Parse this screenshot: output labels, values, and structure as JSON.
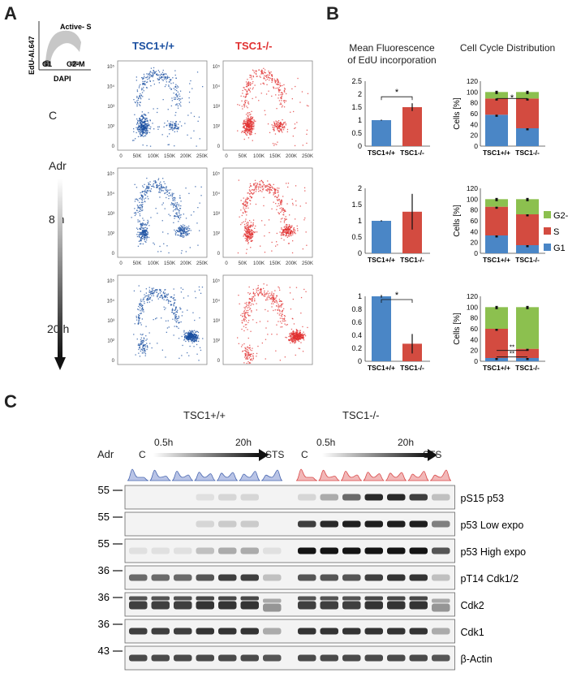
{
  "panelA": {
    "letter": "A",
    "legend": {
      "y_label": "EdU-Al.647",
      "x_label": "DAPI",
      "gate_s": "Active- S",
      "gate_g1": "G1",
      "gate_g2m": "G2-M"
    },
    "col_titles": [
      "TSC1+/+",
      "TSC1-/-"
    ],
    "row_labels": [
      "C",
      "8 h",
      "20 h"
    ],
    "adr_label": "Adr",
    "x_ticks": [
      "0",
      "50K",
      "100K",
      "150K",
      "200K",
      "250K"
    ],
    "y_ticks": [
      "10⁵",
      "10⁴",
      "10³",
      "10²",
      "0"
    ],
    "colors": {
      "wt": "#1a4fa0",
      "ko": "#e03030"
    }
  },
  "panelB": {
    "letter": "B",
    "title_left": "Mean Fluorescence of EdU incorporation",
    "title_right": "Cell Cycle Distribution",
    "ylabel_right": "Cells [%]",
    "categories": [
      "TSC1+/+",
      "TSC1-/-"
    ],
    "legend": [
      "G2-M",
      "S",
      "G1"
    ],
    "colors": {
      "g1": "#4a86c6",
      "s": "#d34b40",
      "g2m": "#8cc04f"
    },
    "sig_labels": [
      "*",
      "*",
      "*",
      "**",
      "**"
    ]
  },
  "chart_data": [
    {
      "type": "bar",
      "categories": [
        "TSC1+/+",
        "TSC1-/-"
      ],
      "values": [
        1.0,
        1.5
      ],
      "ylim": [
        0,
        2.5
      ],
      "yticks": [
        "0",
        "0.5",
        "1",
        "1.5",
        "2",
        "2.5"
      ]
    },
    {
      "type": "bar",
      "categories": [
        "TSC1+/+",
        "TSC1-/-"
      ],
      "values": [
        1.0,
        1.28
      ],
      "ylim": [
        0,
        2.0
      ],
      "yticks": [
        "0",
        "0.5",
        "1",
        "1.5",
        "2"
      ]
    },
    {
      "type": "bar",
      "categories": [
        "TSC1+/+",
        "TSC1-/-"
      ],
      "values": [
        1.0,
        0.27
      ],
      "ylim": [
        0,
        1.0
      ],
      "yticks": [
        "0",
        "0.2",
        "0.4",
        "0.6",
        "0.8",
        "1"
      ]
    },
    {
      "type": "bar",
      "categories": [
        "TSC1+/+",
        "TSC1-/-"
      ],
      "ylabel": "Cells [%]",
      "ylim": [
        0,
        120
      ],
      "yticks": [
        "0",
        "20",
        "40",
        "60",
        "80",
        "100",
        "120"
      ],
      "series": [
        {
          "name": "G1",
          "values": [
            58,
            33
          ]
        },
        {
          "name": "S",
          "values": [
            30,
            55
          ]
        },
        {
          "name": "G2-M",
          "values": [
            12,
            12
          ]
        }
      ]
    },
    {
      "type": "bar",
      "categories": [
        "TSC1+/+",
        "TSC1-/-"
      ],
      "ylabel": "Cells [%]",
      "ylim": [
        0,
        120
      ],
      "yticks": [
        "0",
        "20",
        "40",
        "60",
        "80",
        "100",
        "120"
      ],
      "series": [
        {
          "name": "G1",
          "values": [
            33,
            15
          ]
        },
        {
          "name": "S",
          "values": [
            53,
            57
          ]
        },
        {
          "name": "G2-M",
          "values": [
            14,
            28
          ]
        }
      ]
    },
    {
      "type": "bar",
      "categories": [
        "TSC1+/+",
        "TSC1-/-"
      ],
      "ylabel": "Cells [%]",
      "ylim": [
        0,
        120
      ],
      "yticks": [
        "0",
        "20",
        "40",
        "60",
        "80",
        "100",
        "120"
      ],
      "series": [
        {
          "name": "G1",
          "values": [
            6,
            6
          ]
        },
        {
          "name": "S",
          "values": [
            54,
            17
          ]
        },
        {
          "name": "G2-M",
          "values": [
            40,
            77
          ]
        }
      ]
    }
  ],
  "panelC": {
    "letter": "C",
    "group_wt": "TSC1+/+",
    "group_ko": "TSC1-/-",
    "adr_label": "Adr",
    "time_c": "C",
    "time_05": "0.5h",
    "time_20": "20h",
    "time_sts": "STS",
    "mw": [
      "55",
      "55",
      "55",
      "36",
      "36",
      "36",
      "43"
    ],
    "blots": [
      "pS15 p53",
      "p53 Low expo",
      "p53 High expo",
      "pT14 Cdk1/2",
      "Cdk2",
      "Cdk1",
      "β-Actin"
    ],
    "intensity": [
      [
        0.02,
        0.02,
        0.02,
        0.05,
        0.1,
        0.1,
        0.02,
        0.1,
        0.3,
        0.6,
        0.9,
        0.9,
        0.8,
        0.2
      ],
      [
        0.02,
        0.02,
        0.02,
        0.1,
        0.15,
        0.15,
        0.02,
        0.8,
        0.9,
        0.95,
        0.95,
        0.95,
        0.95,
        0.5
      ],
      [
        0.05,
        0.05,
        0.05,
        0.2,
        0.3,
        0.3,
        0.05,
        1,
        1,
        1,
        1,
        1,
        1,
        0.7
      ],
      [
        0.6,
        0.6,
        0.6,
        0.7,
        0.8,
        0.8,
        0.2,
        0.7,
        0.7,
        0.7,
        0.8,
        0.85,
        0.85,
        0.2
      ],
      [
        0.8,
        0.8,
        0.8,
        0.85,
        0.85,
        0.85,
        0.4,
        0.8,
        0.8,
        0.8,
        0.85,
        0.85,
        0.85,
        0.4
      ],
      [
        0.8,
        0.8,
        0.8,
        0.85,
        0.85,
        0.85,
        0.3,
        0.85,
        0.85,
        0.85,
        0.85,
        0.85,
        0.85,
        0.3
      ],
      [
        0.75,
        0.75,
        0.75,
        0.75,
        0.75,
        0.75,
        0.7,
        0.75,
        0.75,
        0.75,
        0.75,
        0.75,
        0.75,
        0.7
      ]
    ]
  }
}
